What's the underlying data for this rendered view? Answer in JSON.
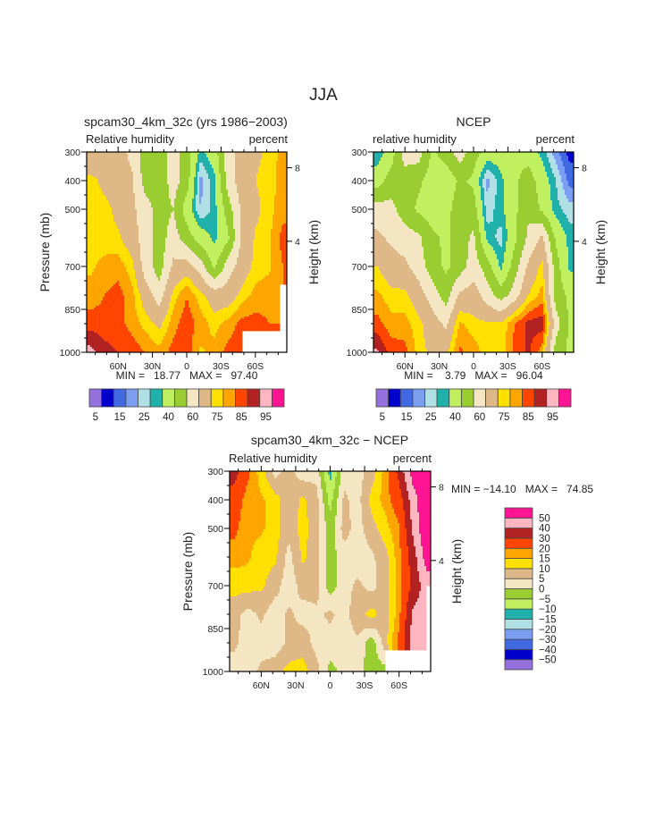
{
  "figure_title": "JJA",
  "colors": [
    "#9370DB",
    "#0000CD",
    "#4169E1",
    "#7B9EF0",
    "#B0E0E6",
    "#20B2AA",
    "#C0F060",
    "#9ACD32",
    "#F5E6C3",
    "#DEB887",
    "#FFE000",
    "#FFA500",
    "#FF4500",
    "#B22222",
    "#FFB6C1",
    "#FF1493"
  ],
  "chart_data": [
    {
      "type": "heatmap",
      "title": "spcam30_4km_32c (yrs 1986−2003)",
      "left_label": "Relative humidity",
      "right_label": "percent",
      "ylabel": "Pressure (mb)",
      "ylabel_right": "Height (km)",
      "stats": "MIN =   18.77   MAX =   97.40",
      "x_ticks": [
        {
          "label": "60N",
          "lat": 60
        },
        {
          "label": "30N",
          "lat": 30
        },
        {
          "label": "0",
          "lat": 0
        },
        {
          "label": "30S",
          "lat": -30
        },
        {
          "label": "60S",
          "lat": -60
        }
      ],
      "y_ticks": [
        {
          "label": "300",
          "p": 300
        },
        {
          "label": "400",
          "p": 400
        },
        {
          "label": "500",
          "p": 500
        },
        {
          "label": "700",
          "p": 700
        },
        {
          "label": "850",
          "p": 850
        },
        {
          "label": "1000",
          "p": 1000
        }
      ],
      "height_ticks": [
        {
          "label": "8",
          "p": 355
        },
        {
          "label": "4",
          "p": 612
        }
      ],
      "xlim": [
        87.5,
        -87.5
      ],
      "ylim": [
        300,
        1000
      ],
      "lats": [
        84,
        72,
        60,
        48,
        36,
        24,
        12,
        0,
        -12,
        -24,
        -36,
        -48,
        -60,
        -72,
        -84
      ],
      "levels_p": [
        300,
        400,
        500,
        600,
        700,
        800,
        900,
        1000
      ],
      "values": [
        [
          62,
          65,
          65,
          57,
          45,
          42,
          55,
          45,
          28,
          35,
          55,
          65,
          68,
          72,
          77
        ],
        [
          72,
          68,
          65,
          62,
          45,
          42,
          55,
          45,
          18,
          28,
          55,
          65,
          70,
          73,
          77
        ],
        [
          72,
          72,
          68,
          62,
          55,
          45,
          50,
          35,
          20,
          27,
          45,
          62,
          68,
          73,
          78
        ],
        [
          72,
          72,
          71,
          65,
          55,
          45,
          55,
          45,
          35,
          28,
          38,
          62,
          71,
          74,
          82
        ],
        [
          74,
          77,
          78,
          72,
          55,
          45,
          62,
          65,
          55,
          38,
          55,
          65,
          72,
          74,
          80
        ],
        [
          77,
          80,
          82,
          77,
          65,
          55,
          72,
          80,
          72,
          65,
          65,
          72,
          77,
          78,
          80
        ],
        [
          83,
          82,
          82,
          78,
          73,
          68,
          78,
          83,
          78,
          73,
          77,
          82,
          82,
          80,
          80
        ],
        [
          92,
          87,
          85,
          83,
          80,
          77,
          82,
          83,
          74,
          77,
          82,
          83,
          86,
          82,
          80
        ]
      ],
      "missing": [
        {
          "lat_max": -48,
          "p_min": 925
        },
        {
          "lat_max": -82,
          "p_min": 760
        }
      ],
      "contour_levels": [
        5,
        10,
        15,
        20,
        25,
        30,
        40,
        50,
        60,
        70,
        75,
        80,
        85,
        90,
        95
      ],
      "colorbar": {
        "orientation": "horizontal",
        "labels": [
          {
            "text": "5",
            "boundary": 1
          },
          {
            "text": "15",
            "boundary": 3
          },
          {
            "text": "25",
            "boundary": 5
          },
          {
            "text": "40",
            "boundary": 7
          },
          {
            "text": "60",
            "boundary": 9
          },
          {
            "text": "75",
            "boundary": 11
          },
          {
            "text": "85",
            "boundary": 13
          },
          {
            "text": "95",
            "boundary": 15
          }
        ]
      }
    },
    {
      "type": "heatmap",
      "title": "NCEP",
      "left_label": "relative humidity",
      "right_label": "percent",
      "ylabel": "Pressure (mb)",
      "ylabel_right": "Height (km)",
      "stats": "MIN =    3.79   MAX =   96.04",
      "x_ticks": [
        {
          "label": "60N",
          "lat": 60
        },
        {
          "label": "30N",
          "lat": 30
        },
        {
          "label": "0",
          "lat": 0
        },
        {
          "label": "30S",
          "lat": -30
        },
        {
          "label": "60S",
          "lat": -60
        }
      ],
      "y_ticks": [
        {
          "label": "300",
          "p": 300
        },
        {
          "label": "400",
          "p": 400
        },
        {
          "label": "500",
          "p": 500
        },
        {
          "label": "700",
          "p": 700
        },
        {
          "label": "850",
          "p": 850
        },
        {
          "label": "1000",
          "p": 1000
        }
      ],
      "height_ticks": [
        {
          "label": "8",
          "p": 355
        },
        {
          "label": "4",
          "p": 612
        }
      ],
      "xlim": [
        87.5,
        -87.5
      ],
      "ylim": [
        300,
        1000
      ],
      "lats": [
        84,
        72,
        60,
        48,
        36,
        24,
        12,
        0,
        -12,
        -24,
        -36,
        -48,
        -60,
        -72,
        -84
      ],
      "levels_p": [
        300,
        400,
        500,
        600,
        700,
        800,
        900,
        1000
      ],
      "values": [
        [
          25,
          35,
          55,
          55,
          38,
          45,
          55,
          45,
          35,
          35,
          38,
          35,
          28,
          17,
          8
        ],
        [
          35,
          45,
          45,
          42,
          35,
          33,
          42,
          38,
          18,
          28,
          38,
          45,
          35,
          25,
          13
        ],
        [
          55,
          53,
          45,
          38,
          35,
          37,
          45,
          45,
          22,
          28,
          38,
          48,
          38,
          27,
          22
        ],
        [
          62,
          58,
          55,
          52,
          42,
          38,
          45,
          52,
          28,
          23,
          38,
          52,
          62,
          38,
          28
        ],
        [
          70,
          65,
          62,
          55,
          45,
          38,
          45,
          55,
          45,
          28,
          45,
          62,
          72,
          45,
          28
        ],
        [
          76,
          72,
          72,
          65,
          55,
          45,
          62,
          65,
          55,
          45,
          55,
          70,
          77,
          45,
          38
        ],
        [
          82,
          77,
          77,
          72,
          65,
          58,
          76,
          72,
          71,
          71,
          80,
          87,
          88,
          55,
          38
        ],
        [
          91,
          83,
          82,
          73,
          68,
          68,
          81,
          78,
          72,
          72,
          82,
          86,
          77,
          45,
          38
        ]
      ],
      "missing": [],
      "contour_levels": [
        5,
        10,
        15,
        20,
        25,
        30,
        40,
        50,
        60,
        70,
        75,
        80,
        85,
        90,
        95
      ],
      "colorbar": {
        "orientation": "horizontal",
        "labels": [
          {
            "text": "5",
            "boundary": 1
          },
          {
            "text": "15",
            "boundary": 3
          },
          {
            "text": "25",
            "boundary": 5
          },
          {
            "text": "40",
            "boundary": 7
          },
          {
            "text": "60",
            "boundary": 9
          },
          {
            "text": "75",
            "boundary": 11
          },
          {
            "text": "85",
            "boundary": 13
          },
          {
            "text": "95",
            "boundary": 15
          }
        ]
      }
    },
    {
      "type": "heatmap",
      "title": "spcam30_4km_32c − NCEP",
      "left_label": "Relative humidity",
      "right_label": "percent",
      "ylabel": "Pressure (mb)",
      "ylabel_right": "Height (km)",
      "stats": "MIN = −14.10   MAX =   74.85",
      "x_ticks": [
        {
          "label": "60N",
          "lat": 60
        },
        {
          "label": "30N",
          "lat": 30
        },
        {
          "label": "0",
          "lat": 0
        },
        {
          "label": "30S",
          "lat": -30
        },
        {
          "label": "60S",
          "lat": -60
        }
      ],
      "y_ticks": [
        {
          "label": "300",
          "p": 300
        },
        {
          "label": "400",
          "p": 400
        },
        {
          "label": "500",
          "p": 500
        },
        {
          "label": "700",
          "p": 700
        },
        {
          "label": "850",
          "p": 850
        },
        {
          "label": "1000",
          "p": 1000
        }
      ],
      "height_ticks": [
        {
          "label": "8",
          "p": 355
        },
        {
          "label": "4",
          "p": 612
        }
      ],
      "xlim": [
        87.5,
        -87.5
      ],
      "ylim": [
        300,
        1000
      ],
      "lats": [
        84,
        72,
        60,
        48,
        36,
        24,
        12,
        0,
        -12,
        -24,
        -36,
        -48,
        -60,
        -72,
        -84
      ],
      "levels_p": [
        300,
        400,
        500,
        600,
        700,
        800,
        900,
        1000
      ],
      "values": [
        [
          35,
          22,
          12,
          3,
          7,
          2,
          3,
          -12,
          3,
          3,
          7,
          17,
          33,
          55,
          60
        ],
        [
          25,
          17,
          16,
          12,
          7,
          11,
          7,
          -7,
          6,
          3,
          12,
          17,
          25,
          45,
          60
        ],
        [
          22,
          16,
          16,
          12,
          7,
          12,
          7,
          -3,
          7,
          3,
          8,
          13,
          19,
          42,
          60
        ],
        [
          17,
          16,
          12,
          11,
          3,
          11,
          7,
          -3,
          3,
          2,
          4,
          8,
          18,
          35,
          55
        ],
        [
          12,
          12,
          11,
          7,
          2,
          7,
          7,
          -3,
          3,
          6,
          3,
          8,
          17,
          33,
          45
        ],
        [
          7,
          3,
          6,
          2,
          6,
          3,
          4,
          6,
          3,
          8,
          12,
          7,
          18,
          42,
          45
        ],
        [
          6,
          3,
          3,
          2,
          6,
          8,
          3,
          3,
          3,
          4,
          -3,
          8,
          22,
          45,
          45
        ],
        [
          3,
          3,
          6,
          8,
          12,
          12,
          7,
          -2,
          2,
          2,
          -3,
          -2,
          22,
          45,
          45
        ]
      ],
      "missing": [
        {
          "lat_max": -48.5,
          "p_min": 925
        },
        {
          "lat_max": -83,
          "p_min": 700
        }
      ],
      "contour_levels": [
        -50,
        -40,
        -30,
        -20,
        -15,
        -10,
        -5,
        0,
        5,
        10,
        15,
        20,
        30,
        40,
        50
      ],
      "colorbar": {
        "orientation": "vertical",
        "labels": [
          {
            "text": "50",
            "boundary": 15
          },
          {
            "text": "40",
            "boundary": 14
          },
          {
            "text": "30",
            "boundary": 13
          },
          {
            "text": "20",
            "boundary": 12
          },
          {
            "text": "15",
            "boundary": 11
          },
          {
            "text": "10",
            "boundary": 10
          },
          {
            "text": "5",
            "boundary": 9
          },
          {
            "text": "0",
            "boundary": 8
          },
          {
            "text": "−5",
            "boundary": 7
          },
          {
            "text": "−10",
            "boundary": 6
          },
          {
            "text": "−15",
            "boundary": 5
          },
          {
            "text": "−20",
            "boundary": 4
          },
          {
            "text": "−30",
            "boundary": 3
          },
          {
            "text": "−40",
            "boundary": 2
          },
          {
            "text": "−50",
            "boundary": 1
          }
        ]
      }
    }
  ]
}
